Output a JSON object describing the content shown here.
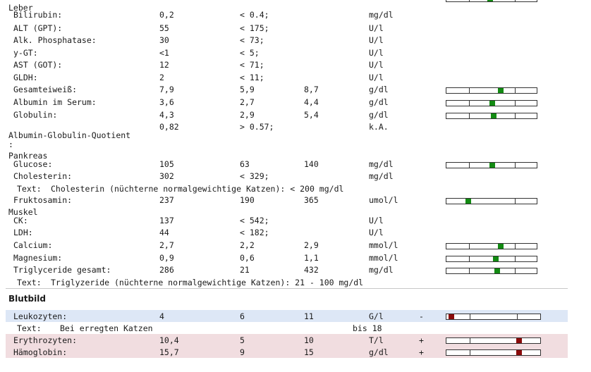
{
  "sections": {
    "leber": "Leber",
    "albumin_globulin": "Albumin-Globulin-Quotient",
    "albumin_globulin_cont": ":",
    "pankreas": "Pankreas",
    "muskel": "Muskel",
    "blutbild": "Blutbild"
  },
  "rows": [
    {
      "name": "Bilirubin:",
      "value": "0,2",
      "low": "< 0.4;",
      "high": "",
      "unit": "mg/dl",
      "marker": null
    },
    {
      "name": "ALT (GPT):",
      "value": "55",
      "low": "< 175;",
      "high": "",
      "unit": "U/l",
      "marker": null
    },
    {
      "name": "Alk. Phosphatase:",
      "value": "30",
      "low": "< 73;",
      "high": "",
      "unit": "U/l",
      "marker": null
    },
    {
      "name": "y-GT:",
      "value": "<1",
      "low": "< 5;",
      "high": "",
      "unit": "U/l",
      "marker": null
    },
    {
      "name": "AST (GOT):",
      "value": "12",
      "low": "< 71;",
      "high": "",
      "unit": "U/l",
      "marker": null
    },
    {
      "name": "GLDH:",
      "value": "2",
      "low": "< 11;",
      "high": "",
      "unit": "U/l",
      "marker": null
    },
    {
      "name": "Gesamteiweiß:",
      "value": "7,9",
      "low": "5,9",
      "high": "8,7",
      "unit": "g/dl",
      "marker": 0.6
    },
    {
      "name": "Albumin im Serum:",
      "value": "3,6",
      "low": "2,7",
      "high": "4,4",
      "unit": "g/dl",
      "marker": 0.5
    },
    {
      "name": "Globulin:",
      "value": "4,3",
      "low": "2,9",
      "high": "5,4",
      "unit": "g/dl",
      "marker": 0.52
    },
    {
      "name": "",
      "value": "0,82",
      "low": "> 0.57;",
      "high": "",
      "unit": "k.A.",
      "marker": null
    },
    {
      "name": "Glucose:",
      "value": "105",
      "low": "63",
      "high": "140",
      "unit": "mg/dl",
      "marker": 0.5
    },
    {
      "name": "Cholesterin:",
      "value": "302",
      "low": "< 329;",
      "high": "",
      "unit": "mg/dl",
      "marker": null
    },
    {
      "name": "Fruktosamin:",
      "value": "237",
      "low": "190",
      "high": "365",
      "unit": "umol/l",
      "marker": 0.22
    },
    {
      "name": "CK:",
      "value": "137",
      "low": "< 542;",
      "high": "",
      "unit": "U/l",
      "marker": null
    },
    {
      "name": "LDH:",
      "value": "44",
      "low": "< 182;",
      "high": "",
      "unit": "U/l",
      "marker": null
    },
    {
      "name": "Calcium:",
      "value": "2,7",
      "low": "2,2",
      "high": "2,9",
      "unit": "mmol/l",
      "marker": 0.6
    },
    {
      "name": "Magnesium:",
      "value": "0,9",
      "low": "0,6",
      "high": "1,1",
      "unit": "mmol/l",
      "marker": 0.54
    },
    {
      "name": "Triglyceride gesamt:",
      "value": "286",
      "low": "21",
      "high": "432",
      "unit": "mg/dl",
      "marker": 0.56
    }
  ],
  "texts": {
    "label": "Text:",
    "cholesterin_note": "Cholesterin (nüchterne normalgewichtige Katzen): < 200 mg/dl",
    "triglyzeride_note": "Triglyzeride (nüchterne normalgewichtige Katzen): 21 - 100 mg/dl",
    "leuko_note": "Bei erregten Katzen",
    "leuko_note_range": "bis 18"
  },
  "blutbild_rows": [
    {
      "name": "Leukozyten:",
      "value": "4",
      "low": "6",
      "high": "11",
      "unit": "G/l",
      "flag": "-",
      "marker": 0.02
    },
    {
      "name": "Erythrozyten:",
      "value": "10,4",
      "low": "5",
      "high": "10",
      "unit": "T/l",
      "flag": "+",
      "marker": 0.78
    },
    {
      "name": "Hämoglobin:",
      "value": "15,7",
      "low": "9",
      "high": "15",
      "unit": "g/dl",
      "flag": "+",
      "marker": 0.78
    }
  ],
  "colors": {
    "in_range": "#128a12",
    "out_of_range": "#8a0a0a",
    "low_row": "#dde7f6",
    "high_row": "#f1dde0"
  }
}
